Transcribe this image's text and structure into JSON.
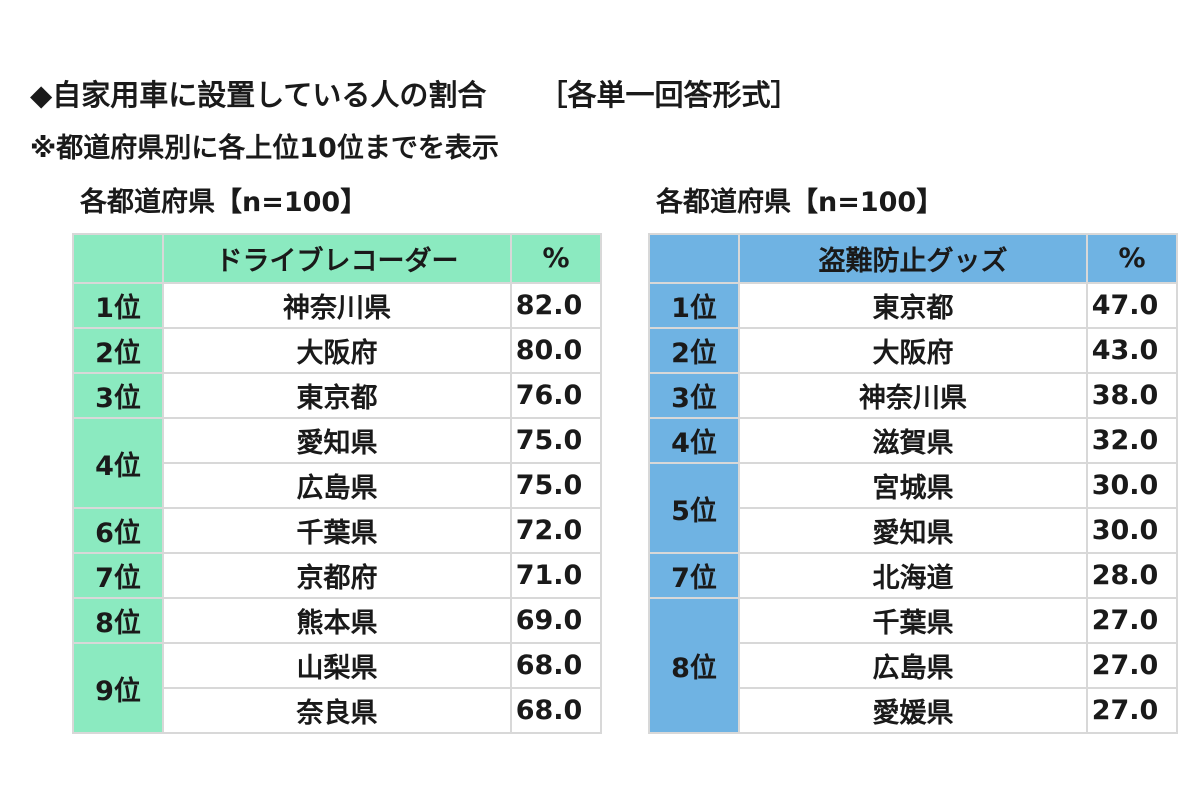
{
  "header": {
    "title": "◆自家用車に設置している人の割合",
    "answer_format": "［各単一回答形式］",
    "note": "※都道府県別に各上位10位までを表示"
  },
  "tables": [
    {
      "caption": "各都道府県【n=100】",
      "item_header": "ドライブレコーダー",
      "percent_header": "%",
      "accent_color": "#8beac0",
      "rows": [
        {
          "rank": "1位",
          "pref": "神奈川県",
          "value": "82.0"
        },
        {
          "rank": "2位",
          "pref": "大阪府",
          "value": "80.0"
        },
        {
          "rank": "3位",
          "pref": "東京都",
          "value": "76.0"
        },
        {
          "rank": "4位",
          "pref": "愛知県",
          "value": "75.0"
        },
        {
          "rank": "",
          "pref": "広島県",
          "value": "75.0"
        },
        {
          "rank": "6位",
          "pref": "千葉県",
          "value": "72.0"
        },
        {
          "rank": "7位",
          "pref": "京都府",
          "value": "71.0"
        },
        {
          "rank": "8位",
          "pref": "熊本県",
          "value": "69.0"
        },
        {
          "rank": "9位",
          "pref": "山梨県",
          "value": "68.0"
        },
        {
          "rank": "",
          "pref": "奈良県",
          "value": "68.0"
        }
      ]
    },
    {
      "caption": "各都道府県【n=100】",
      "item_header": "盗難防止グッズ",
      "percent_header": "%",
      "accent_color": "#6fb3e3",
      "rows": [
        {
          "rank": "1位",
          "pref": "東京都",
          "value": "47.0"
        },
        {
          "rank": "2位",
          "pref": "大阪府",
          "value": "43.0"
        },
        {
          "rank": "3位",
          "pref": "神奈川県",
          "value": "38.0"
        },
        {
          "rank": "4位",
          "pref": "滋賀県",
          "value": "32.0"
        },
        {
          "rank": "5位",
          "pref": "宮城県",
          "value": "30.0"
        },
        {
          "rank": "",
          "pref": "愛知県",
          "value": "30.0"
        },
        {
          "rank": "7位",
          "pref": "北海道",
          "value": "28.0"
        },
        {
          "rank": "8位",
          "pref": "千葉県",
          "value": "27.0"
        },
        {
          "rank": "",
          "pref": "広島県",
          "value": "27.0"
        },
        {
          "rank": "",
          "pref": "愛媛県",
          "value": "27.0"
        }
      ]
    }
  ]
}
